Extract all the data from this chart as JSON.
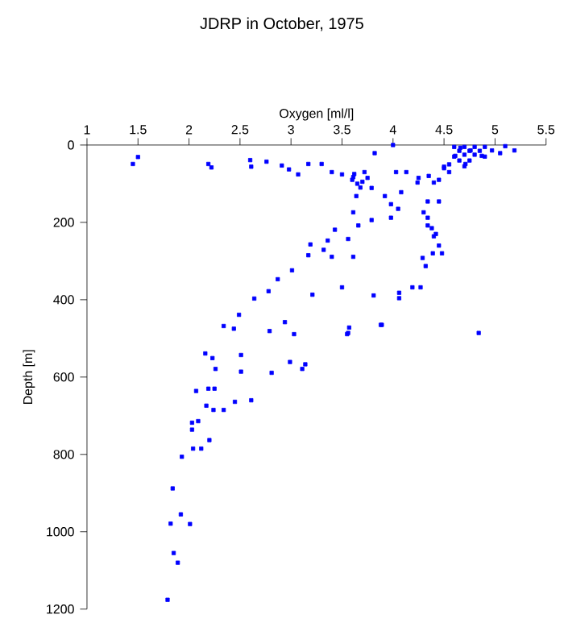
{
  "chart_data": {
    "type": "scatter",
    "title": "JDRP in October, 1975",
    "xlabel": "Oxygen [ml/l]",
    "ylabel": "Depth [m]",
    "xlim": [
      1,
      5.5
    ],
    "xticks": [
      1,
      1.5,
      2,
      2.5,
      3,
      3.5,
      4,
      4.5,
      5,
      5.5
    ],
    "ylim": [
      1200,
      0
    ],
    "yticks": [
      0,
      200,
      400,
      600,
      800,
      1000,
      1200
    ],
    "marker": "square",
    "grid": false,
    "series": [
      {
        "color": "#0000ff",
        "x": [
          1.79,
          1.89,
          1.85,
          1.82,
          2.01,
          1.92,
          1.84,
          1.93,
          2.04,
          2.12,
          2.2,
          2.03,
          2.03,
          2.09,
          2.17,
          2.24,
          2.34,
          2.45,
          2.61,
          2.07,
          2.19,
          2.25,
          2.26,
          2.51,
          2.81,
          2.16,
          2.23,
          2.51,
          2.99,
          3.11,
          3.14,
          2.34,
          2.44,
          2.49,
          2.79,
          2.94,
          3.03,
          3.55,
          3.57,
          3.89,
          2.64,
          2.78,
          3.21,
          3.81,
          1.45,
          1.5,
          2.19,
          2.22,
          2.6,
          2.61,
          2.76,
          2.91,
          2.98,
          3.07,
          3.17,
          3.3,
          3.4,
          3.5,
          3.61,
          3.72,
          3.82,
          3.64,
          3.79,
          3.92,
          4.03,
          4.13,
          4.0,
          4.24,
          4.4,
          4.34,
          4.45,
          4.5,
          4.61,
          4.76,
          4.66,
          4.87,
          4.97,
          5.1,
          5.19,
          5.05,
          4.55,
          4.71,
          3.98,
          4.08,
          3.61,
          3.66,
          3.79,
          3.98,
          4.3,
          4.34,
          4.34,
          4.4,
          3.43,
          3.36,
          3.56,
          3.19,
          3.32,
          3.17,
          3.4,
          3.61,
          3.01,
          2.87,
          4.29,
          4.39,
          4.48,
          4.32,
          4.19,
          4.27,
          4.06,
          3.5,
          4.84,
          3.88,
          3.56,
          4.06,
          4.6,
          4.7,
          4.8,
          4.9,
          4.65,
          4.75,
          4.85,
          4.7,
          4.8,
          4.6,
          4.9,
          4.65,
          4.75,
          4.55,
          4.7,
          4.5,
          3.6,
          3.65,
          3.7,
          3.75,
          3.68,
          3.62,
          4.25,
          4.35,
          4.45,
          4.38,
          4.42,
          4.45,
          4.05
        ],
        "values": [
          1176,
          1080,
          1055,
          979,
          980,
          955,
          888,
          806,
          785,
          785,
          763,
          736,
          718,
          714,
          674,
          685,
          685,
          664,
          660,
          636,
          630,
          630,
          579,
          586,
          589,
          539,
          551,
          543,
          561,
          579,
          567,
          468,
          475,
          439,
          481,
          458,
          489,
          489,
          472,
          465,
          397,
          378,
          387,
          389,
          49,
          31,
          49,
          58,
          39,
          56,
          43,
          53,
          63,
          76,
          49,
          49,
          70,
          76,
          83,
          70,
          21,
          132,
          111,
          132,
          70,
          70,
          0,
          97,
          97,
          146,
          146,
          56,
          28,
          14,
          7,
          28,
          14,
          3,
          14,
          21,
          70,
          49,
          153,
          122,
          174,
          208,
          194,
          188,
          174,
          188,
          208,
          236,
          219,
          247,
          243,
          257,
          271,
          285,
          289,
          289,
          324,
          347,
          292,
          280,
          280,
          313,
          368,
          368,
          382,
          368,
          486,
          465,
          486,
          396,
          5,
          5,
          5,
          5,
          15,
          15,
          15,
          25,
          25,
          30,
          30,
          40,
          40,
          50,
          55,
          60,
          90,
          100,
          95,
          85,
          110,
          75,
          85,
          80,
          90,
          215,
          230,
          260,
          165
        ]
      }
    ]
  }
}
